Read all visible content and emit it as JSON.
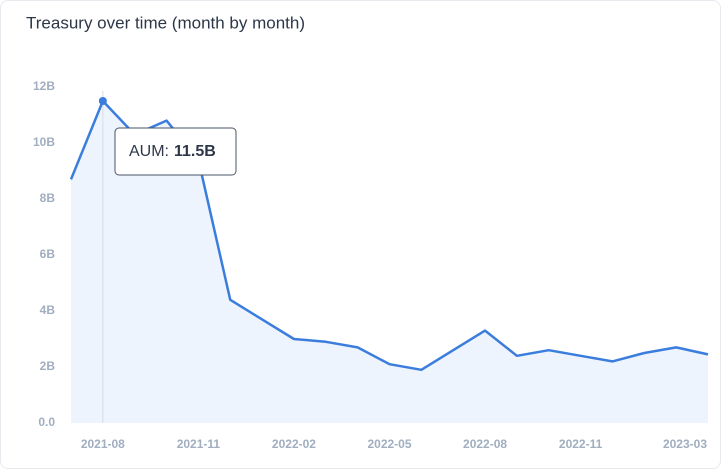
{
  "chart_data": {
    "type": "area",
    "title": "Treasury over time (month by month)",
    "categories": [
      null,
      "2021-08",
      null,
      null,
      "2021-11",
      null,
      null,
      "2022-02",
      null,
      null,
      "2022-05",
      null,
      null,
      "2022-08",
      null,
      null,
      "2022-11",
      null,
      null,
      null,
      "2023-03"
    ],
    "series": [
      {
        "name": "AUM",
        "color": "#3b7ddd",
        "values": [
          8.7,
          11.5,
          10.3,
          10.8,
          9.4,
          4.4,
          3.7,
          3.0,
          2.9,
          2.7,
          2.1,
          1.9,
          2.6,
          3.3,
          2.4,
          2.6,
          2.4,
          2.2,
          2.5,
          2.7,
          2.45
        ]
      }
    ],
    "ylim": [
      0,
      12
    ],
    "yticks": [
      {
        "value": 0,
        "label": "0.0"
      },
      {
        "value": 2,
        "label": "2B"
      },
      {
        "value": 4,
        "label": "4B"
      },
      {
        "value": 6,
        "label": "6B"
      },
      {
        "value": 8,
        "label": "8B"
      },
      {
        "value": 10,
        "label": "10B"
      },
      {
        "value": 12,
        "label": "12B"
      }
    ],
    "tooltip": {
      "index": 1,
      "label": "AUM:",
      "value_label": "11.5B"
    }
  }
}
